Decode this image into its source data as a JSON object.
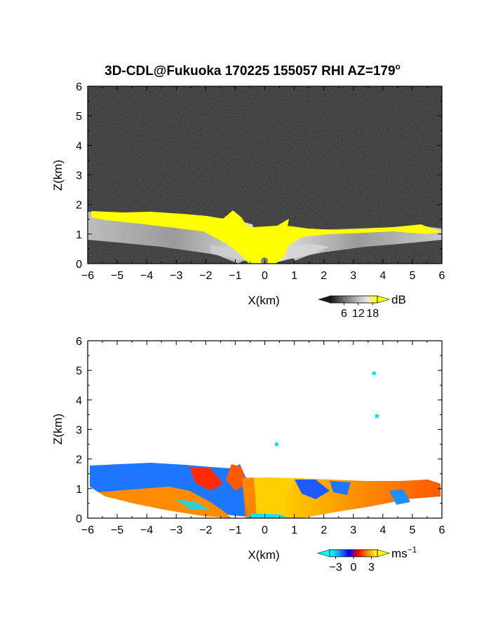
{
  "title": "3D-CDL@Fukuoka 170225 155057 RHI AZ=179",
  "title_sup": "o",
  "chart_data": [
    {
      "type": "heatmap",
      "name": "reflectivity-panel",
      "xlabel": "X(km)",
      "ylabel": "Z(km)",
      "xlim": [
        -6,
        6
      ],
      "ylim": [
        0,
        6
      ],
      "xticks": [
        -6,
        -5,
        -4,
        -3,
        -2,
        -1,
        0,
        1,
        2,
        3,
        4,
        5,
        6
      ],
      "yticks": [
        0,
        1,
        2,
        3,
        4,
        5,
        6
      ],
      "colorbar": {
        "unit": "dB",
        "ticks": [
          6,
          12,
          18
        ],
        "range": [
          0,
          20
        ],
        "colors": [
          "#1a1a1a",
          "#555555",
          "#8a8a8a",
          "#bdbdbd",
          "#e6e6e6",
          "#ffff00"
        ]
      },
      "background": "#2b2b2b",
      "highlight_color": "#ffff00"
    },
    {
      "type": "heatmap",
      "name": "velocity-panel",
      "xlabel": "X(km)",
      "ylabel": "Z(km)",
      "xlim": [
        -6,
        6
      ],
      "ylim": [
        0,
        6
      ],
      "xticks": [
        -6,
        -5,
        -4,
        -3,
        -2,
        -1,
        0,
        1,
        2,
        3,
        4,
        5,
        6
      ],
      "yticks": [
        0,
        1,
        2,
        3,
        4,
        5,
        6
      ],
      "colorbar": {
        "unit": "ms",
        "unit_sup": "−1",
        "ticks": [
          "−3",
          "0",
          "3"
        ],
        "range": [
          -4,
          4
        ],
        "colors": [
          "#00ffff",
          "#1e90ff",
          "#0000ff",
          "#ff0000",
          "#ff8c00",
          "#ffff00"
        ]
      },
      "background": "#ffffff",
      "isolated_points": [
        {
          "x": 0.4,
          "z": 2.5
        },
        {
          "x": 3.7,
          "z": 4.9
        },
        {
          "x": 3.8,
          "z": 3.45
        }
      ]
    }
  ]
}
